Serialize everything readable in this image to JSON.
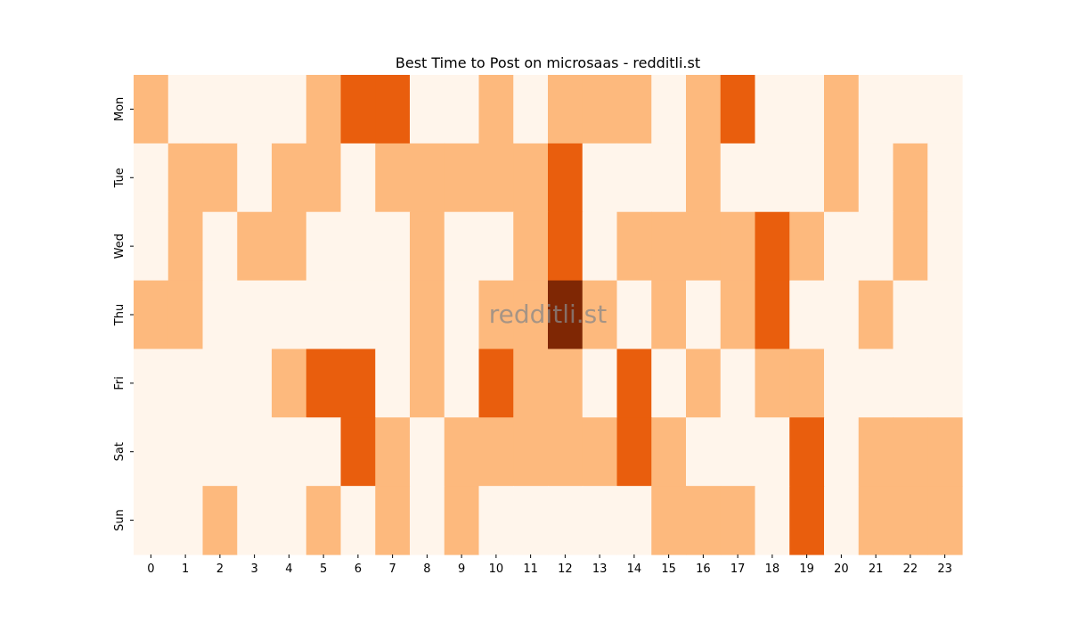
{
  "chart_data": {
    "type": "heatmap",
    "title": "Best Time to Post on microsaas - redditli.st",
    "watermark": "redditli.st",
    "xlabel": "",
    "ylabel": "",
    "x_categories": [
      "0",
      "1",
      "2",
      "3",
      "4",
      "5",
      "6",
      "7",
      "8",
      "9",
      "10",
      "11",
      "12",
      "13",
      "14",
      "15",
      "16",
      "17",
      "18",
      "19",
      "20",
      "21",
      "22",
      "23"
    ],
    "y_categories": [
      "Mon",
      "Tue",
      "Wed",
      "Thu",
      "Fri",
      "Sat",
      "Sun"
    ],
    "value_scale": "relative intensity levels 0-3",
    "colormap": [
      "#fff5eb",
      "#fdb97d",
      "#e95e0d",
      "#7f2704"
    ],
    "values": [
      [
        1,
        0,
        0,
        0,
        0,
        1,
        2,
        2,
        0,
        0,
        1,
        0,
        1,
        1,
        1,
        0,
        1,
        2,
        0,
        0,
        1,
        0,
        0,
        0
      ],
      [
        0,
        1,
        1,
        0,
        1,
        1,
        0,
        1,
        1,
        1,
        1,
        1,
        2,
        0,
        0,
        0,
        1,
        0,
        0,
        0,
        1,
        0,
        1,
        0
      ],
      [
        0,
        1,
        0,
        1,
        1,
        0,
        0,
        0,
        1,
        0,
        0,
        1,
        2,
        0,
        1,
        1,
        1,
        1,
        2,
        1,
        0,
        0,
        1,
        0
      ],
      [
        1,
        1,
        0,
        0,
        0,
        0,
        0,
        0,
        1,
        0,
        1,
        1,
        3,
        1,
        0,
        1,
        0,
        1,
        2,
        0,
        0,
        1,
        0,
        0
      ],
      [
        0,
        0,
        0,
        0,
        1,
        2,
        2,
        0,
        1,
        0,
        2,
        1,
        1,
        0,
        2,
        0,
        1,
        0,
        1,
        1,
        0,
        0,
        0,
        0
      ],
      [
        0,
        0,
        0,
        0,
        0,
        0,
        2,
        1,
        0,
        1,
        1,
        1,
        1,
        1,
        2,
        1,
        0,
        0,
        0,
        2,
        0,
        1,
        1,
        1
      ],
      [
        0,
        0,
        1,
        0,
        0,
        1,
        0,
        1,
        0,
        1,
        0,
        0,
        0,
        0,
        0,
        1,
        1,
        1,
        0,
        2,
        0,
        1,
        1,
        1
      ]
    ],
    "grid": false,
    "legend": "none"
  }
}
